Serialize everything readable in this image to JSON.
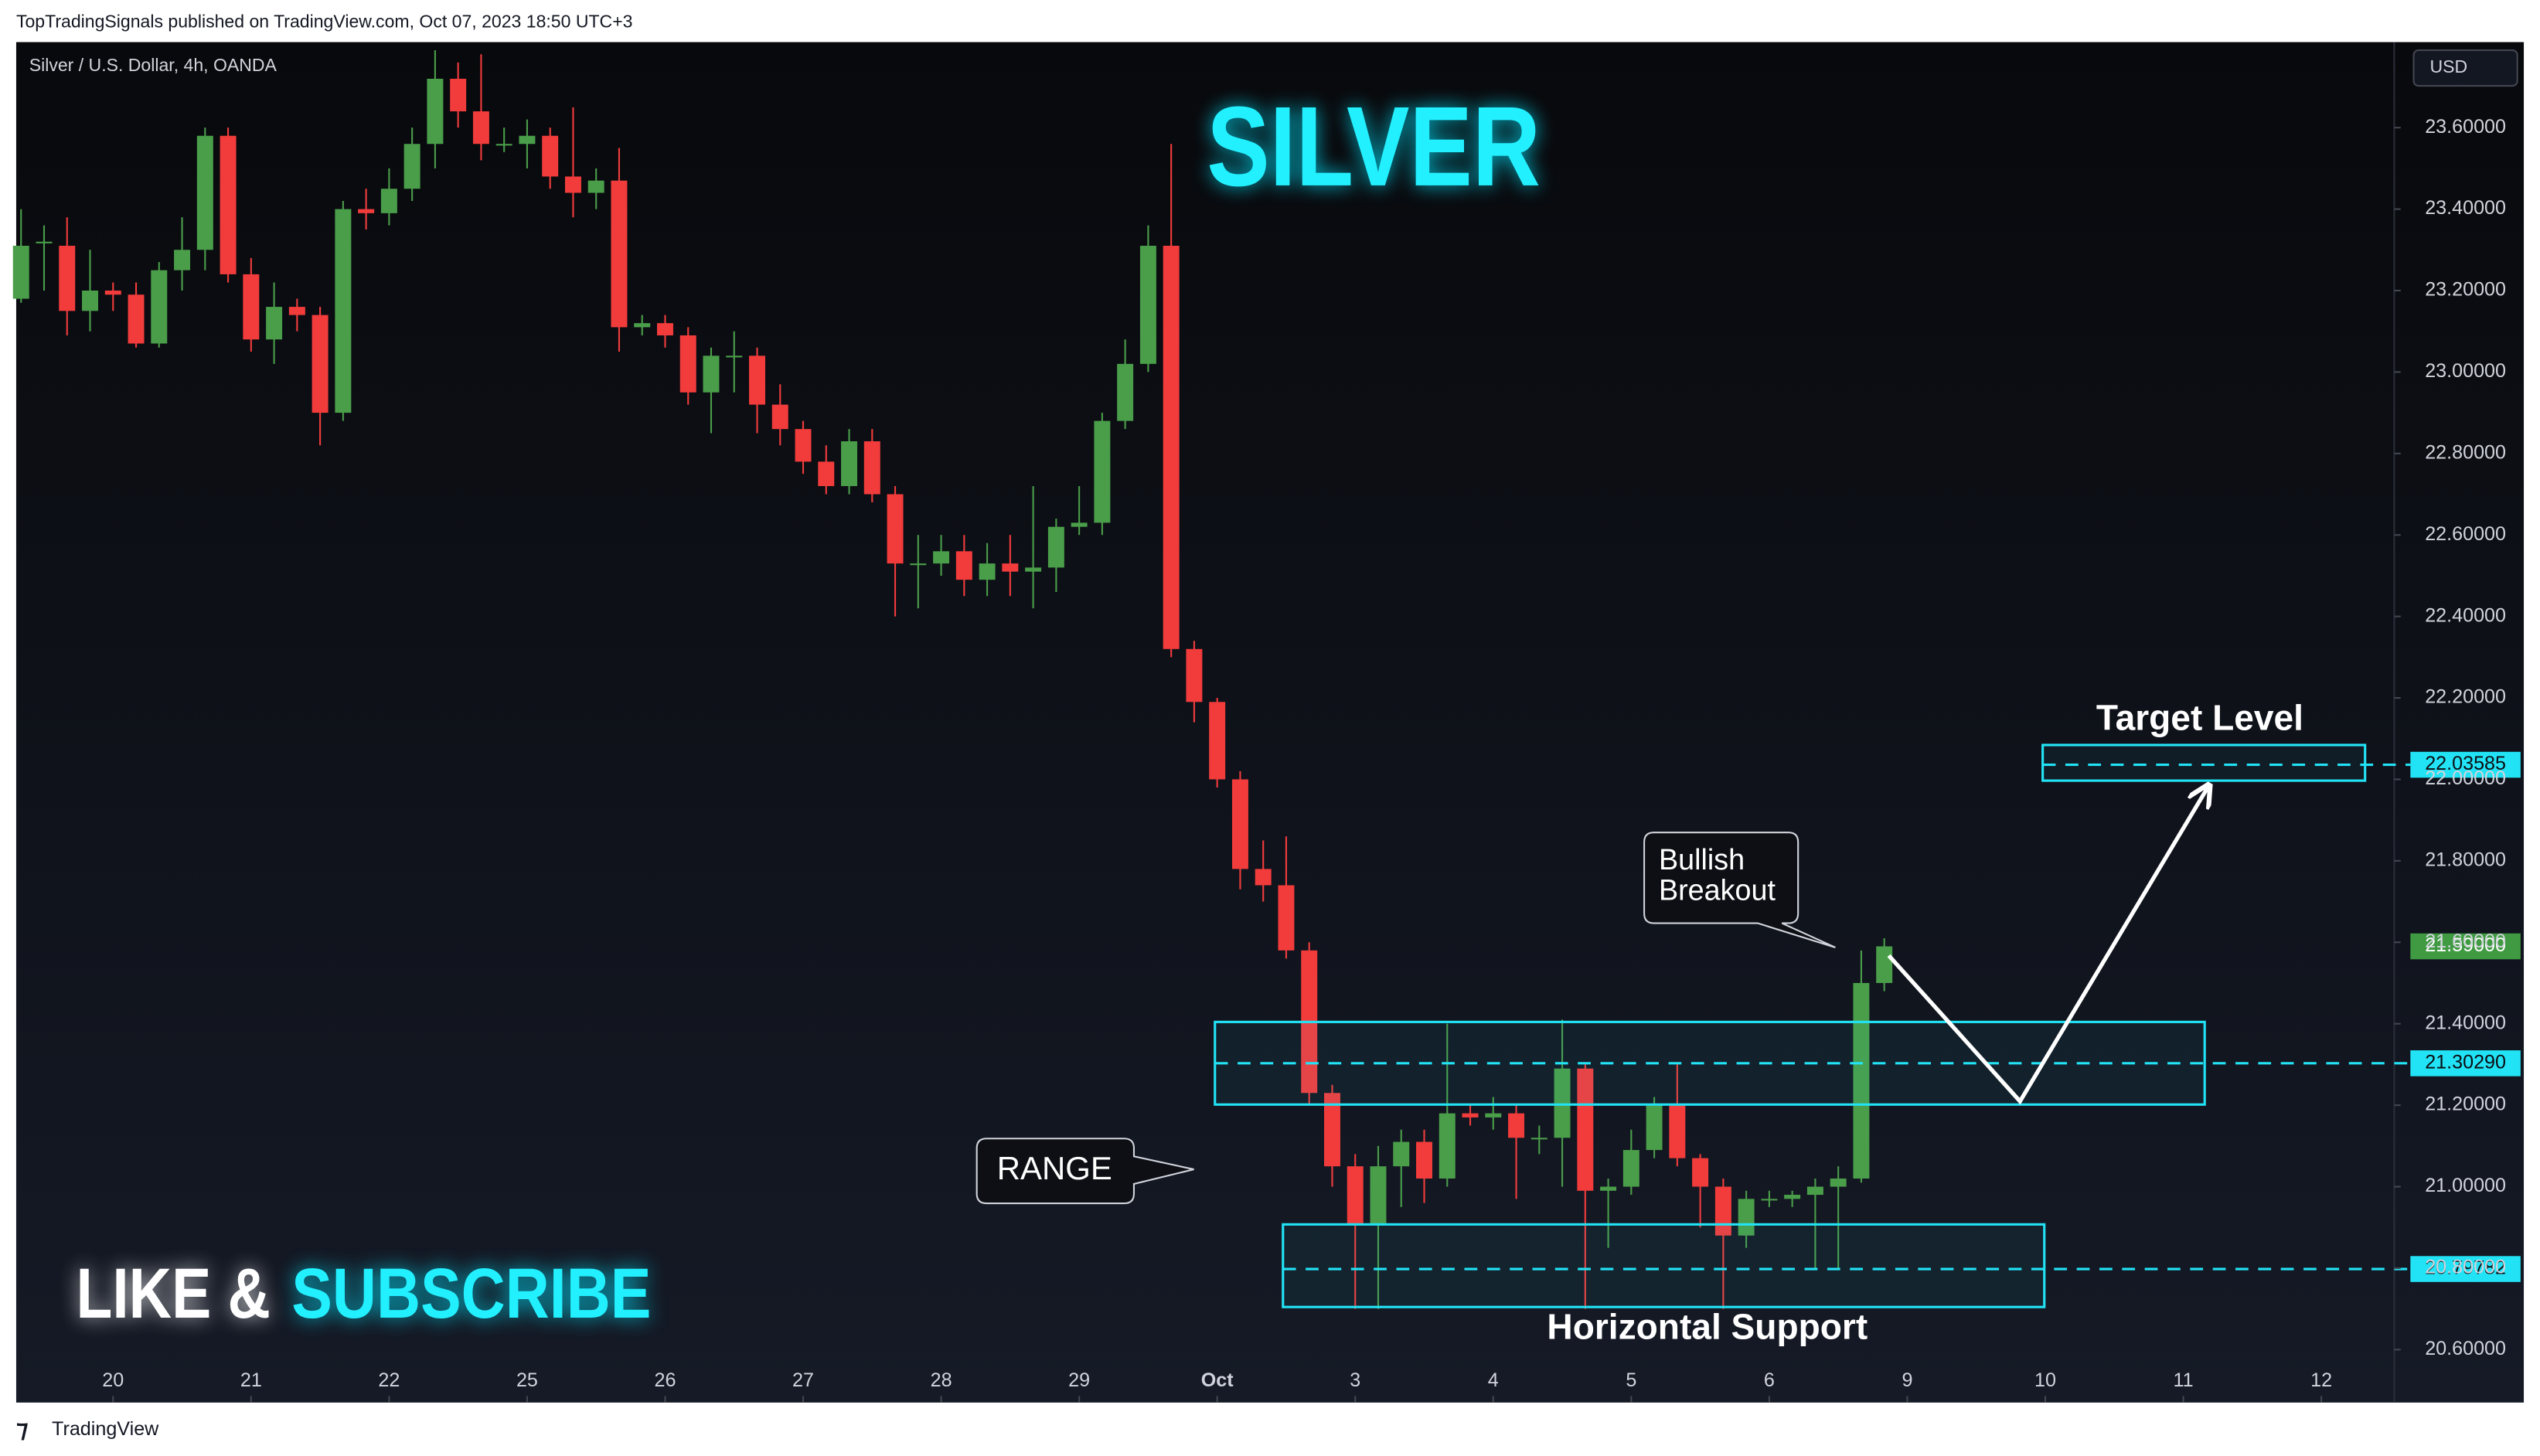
{
  "header": "TopTradingSignals published on TradingView.com, Oct 07, 2023 18:50 UTC+3",
  "footer": "TradingView",
  "currency": "USD",
  "chart_data": {
    "type": "candlestick",
    "title": "Silver / U.S. Dollar, 4h, OANDA",
    "up_color": "#4a9e4a",
    "down_color": "#f23c3c",
    "grid": false,
    "open": [
      23.18,
      23.32,
      23.31,
      23.15,
      23.2,
      23.19,
      23.07,
      23.25,
      23.3,
      23.58,
      23.24,
      23.08,
      23.16,
      23.14,
      22.9,
      23.4,
      23.39,
      23.45,
      23.56,
      23.72,
      23.64,
      23.56,
      23.56,
      23.58,
      23.48,
      23.44,
      23.47,
      23.11,
      23.12,
      23.09,
      22.95,
      23.04,
      23.04,
      22.92,
      22.86,
      22.78,
      22.72,
      22.83,
      22.7,
      22.53,
      22.53,
      22.56,
      22.49,
      22.53,
      22.51,
      22.52,
      22.62,
      22.63,
      22.88,
      23.02,
      23.31,
      22.32,
      22.19,
      22.0,
      21.78,
      21.74,
      21.58,
      21.23,
      21.05,
      20.91,
      21.05,
      21.11,
      21.02,
      21.18,
      21.17,
      21.18,
      21.12,
      21.12,
      21.29,
      20.99,
      21.0,
      21.09,
      21.2,
      21.07,
      21.0,
      20.88,
      20.97,
      20.97,
      20.98,
      21.0,
      21.02,
      21.5
    ],
    "high": [
      23.4,
      23.36,
      23.38,
      23.3,
      23.22,
      23.22,
      23.27,
      23.38,
      23.6,
      23.6,
      23.28,
      23.22,
      23.18,
      23.16,
      23.42,
      23.45,
      23.5,
      23.6,
      23.79,
      23.76,
      23.78,
      23.6,
      23.62,
      23.6,
      23.65,
      23.5,
      23.55,
      23.14,
      23.14,
      23.11,
      23.06,
      23.1,
      23.06,
      22.97,
      22.88,
      22.82,
      22.86,
      22.86,
      22.72,
      22.6,
      22.6,
      22.6,
      22.58,
      22.6,
      22.72,
      22.64,
      22.72,
      22.9,
      23.08,
      23.36,
      23.56,
      22.34,
      22.2,
      22.02,
      21.85,
      21.86,
      21.6,
      21.25,
      21.08,
      21.1,
      21.14,
      21.14,
      21.4,
      21.2,
      21.22,
      21.2,
      21.15,
      21.41,
      21.3,
      21.02,
      21.14,
      21.22,
      21.3,
      21.08,
      21.02,
      20.99,
      20.99,
      20.99,
      21.02,
      21.05,
      21.58,
      21.61
    ],
    "low": [
      23.17,
      23.2,
      23.09,
      23.1,
      23.15,
      23.06,
      23.06,
      23.2,
      23.25,
      23.22,
      23.05,
      23.02,
      23.1,
      22.82,
      22.88,
      23.35,
      23.36,
      23.42,
      23.5,
      23.6,
      23.52,
      23.54,
      23.5,
      23.45,
      23.38,
      23.4,
      23.05,
      23.09,
      23.06,
      22.92,
      22.85,
      22.95,
      22.85,
      22.82,
      22.75,
      22.7,
      22.7,
      22.68,
      22.4,
      22.42,
      22.5,
      22.45,
      22.45,
      22.45,
      22.42,
      22.46,
      22.6,
      22.6,
      22.86,
      23.0,
      22.3,
      22.14,
      21.98,
      21.73,
      21.7,
      21.56,
      21.2,
      21.0,
      20.7,
      20.7,
      20.95,
      20.96,
      21.0,
      21.15,
      21.14,
      20.97,
      21.08,
      21.0,
      20.7,
      20.85,
      20.98,
      21.07,
      21.05,
      20.9,
      20.7,
      20.85,
      20.95,
      20.95,
      20.8,
      20.8,
      21.01,
      21.48
    ],
    "close": [
      23.31,
      23.32,
      23.15,
      23.2,
      23.19,
      23.07,
      23.25,
      23.3,
      23.58,
      23.24,
      23.08,
      23.16,
      23.14,
      22.9,
      23.4,
      23.39,
      23.45,
      23.56,
      23.72,
      23.64,
      23.56,
      23.56,
      23.58,
      23.48,
      23.44,
      23.47,
      23.11,
      23.12,
      23.09,
      22.95,
      23.04,
      23.04,
      22.92,
      22.86,
      22.78,
      22.72,
      22.83,
      22.7,
      22.53,
      22.53,
      22.56,
      22.49,
      22.53,
      22.51,
      22.52,
      22.62,
      22.63,
      22.88,
      23.02,
      23.31,
      22.32,
      22.19,
      22.0,
      21.78,
      21.74,
      21.58,
      21.23,
      21.05,
      20.91,
      21.05,
      21.11,
      21.02,
      21.18,
      21.17,
      21.18,
      21.12,
      21.12,
      21.29,
      20.99,
      21.0,
      21.09,
      21.2,
      21.07,
      21.0,
      20.88,
      20.97,
      20.97,
      20.98,
      21.0,
      21.02,
      21.5,
      21.59
    ],
    "ylim": [
      20.47,
      23.81
    ],
    "yticks": [
      {
        "value": 20.6,
        "label": "20.60000"
      },
      {
        "value": 20.8,
        "label": "20.80000"
      },
      {
        "value": 21.0,
        "label": "21.00000"
      },
      {
        "value": 21.2,
        "label": "21.20000"
      },
      {
        "value": 21.4,
        "label": "21.40000"
      },
      {
        "value": 21.6,
        "label": "21.60000"
      },
      {
        "value": 21.8,
        "label": "21.80000"
      },
      {
        "value": 22.0,
        "label": "22.00000"
      },
      {
        "value": 22.2,
        "label": "22.20000"
      },
      {
        "value": 22.4,
        "label": "22.40000"
      },
      {
        "value": 22.6,
        "label": "22.60000"
      },
      {
        "value": 22.8,
        "label": "22.80000"
      },
      {
        "value": 23.0,
        "label": "23.00000"
      },
      {
        "value": 23.2,
        "label": "23.20000"
      },
      {
        "value": 23.4,
        "label": "23.40000"
      },
      {
        "value": 23.6,
        "label": "23.60000"
      }
    ],
    "xticks": [
      {
        "value": 4,
        "label": "20"
      },
      {
        "value": 10,
        "label": "21"
      },
      {
        "value": 16,
        "label": "22"
      },
      {
        "value": 22,
        "label": "25"
      },
      {
        "value": 28,
        "label": "26"
      },
      {
        "value": 34,
        "label": "27"
      },
      {
        "value": 40,
        "label": "28"
      },
      {
        "value": 46,
        "label": "29"
      },
      {
        "value": 52,
        "label": "Oct"
      },
      {
        "value": 58,
        "label": "3"
      },
      {
        "value": 64,
        "label": "4"
      },
      {
        "value": 70,
        "label": "5"
      },
      {
        "value": 76,
        "label": "6"
      },
      {
        "value": 82,
        "label": "9"
      },
      {
        "value": 88,
        "label": "10"
      },
      {
        "value": 94,
        "label": "11"
      },
      {
        "value": 100,
        "label": "12"
      }
    ],
    "levels": [
      {
        "value": 22.03585,
        "label": "22.03585",
        "color": "#22e3f5"
      },
      {
        "value": 21.59,
        "label": "21.59000",
        "color": "#3f9a42"
      },
      {
        "value": 21.3029,
        "label": "21.30290",
        "color": "#22e3f5"
      },
      {
        "value": 20.79782,
        "label": "20.79782",
        "color": "#22e3f5"
      }
    ],
    "annotations": {
      "headline": "SILVER",
      "target": "Target Level",
      "breakout": [
        "Bullish",
        "Breakout"
      ],
      "range": "RANGE",
      "support": "Horizontal Support",
      "like": "LIKE &",
      "subscribe": "SUBSCRIBE"
    }
  }
}
